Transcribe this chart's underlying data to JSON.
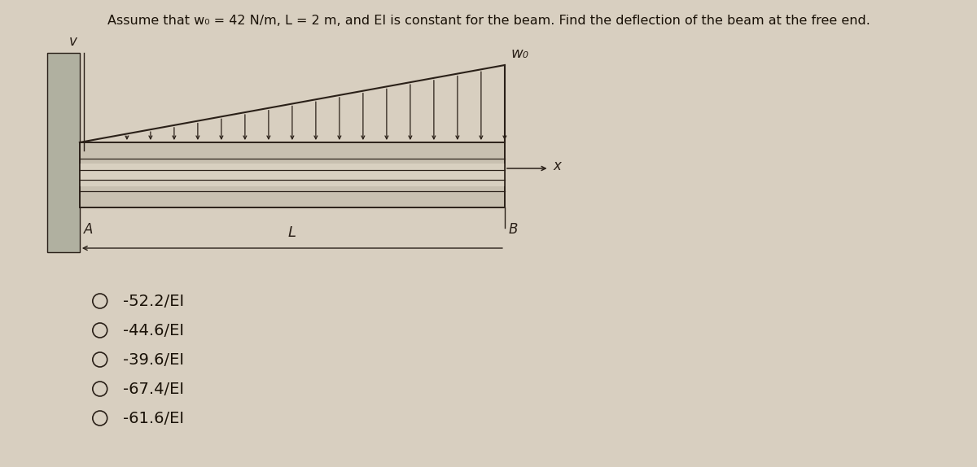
{
  "title": "Assume that w₀ = 42 N/m, L = 2 m, and EI is constant for the beam. Find the deflection of the beam at the free end.",
  "background_color": "#d8cfc0",
  "beam_fill_color": "#c0b8a8",
  "beam_line_color": "#2a2018",
  "wall_color": "#b0b0a0",
  "choices": [
    "-52.2/EI",
    "-44.6/EI",
    "-39.6/EI",
    "-67.4/EI",
    "-61.6/EI"
  ],
  "load_label": "w₀",
  "label_A": "A",
  "label_B": "B",
  "label_L": "L",
  "label_v": "v",
  "label_x": "x",
  "num_arrows": 18,
  "title_fontsize": 11.5,
  "choices_fontsize": 14
}
